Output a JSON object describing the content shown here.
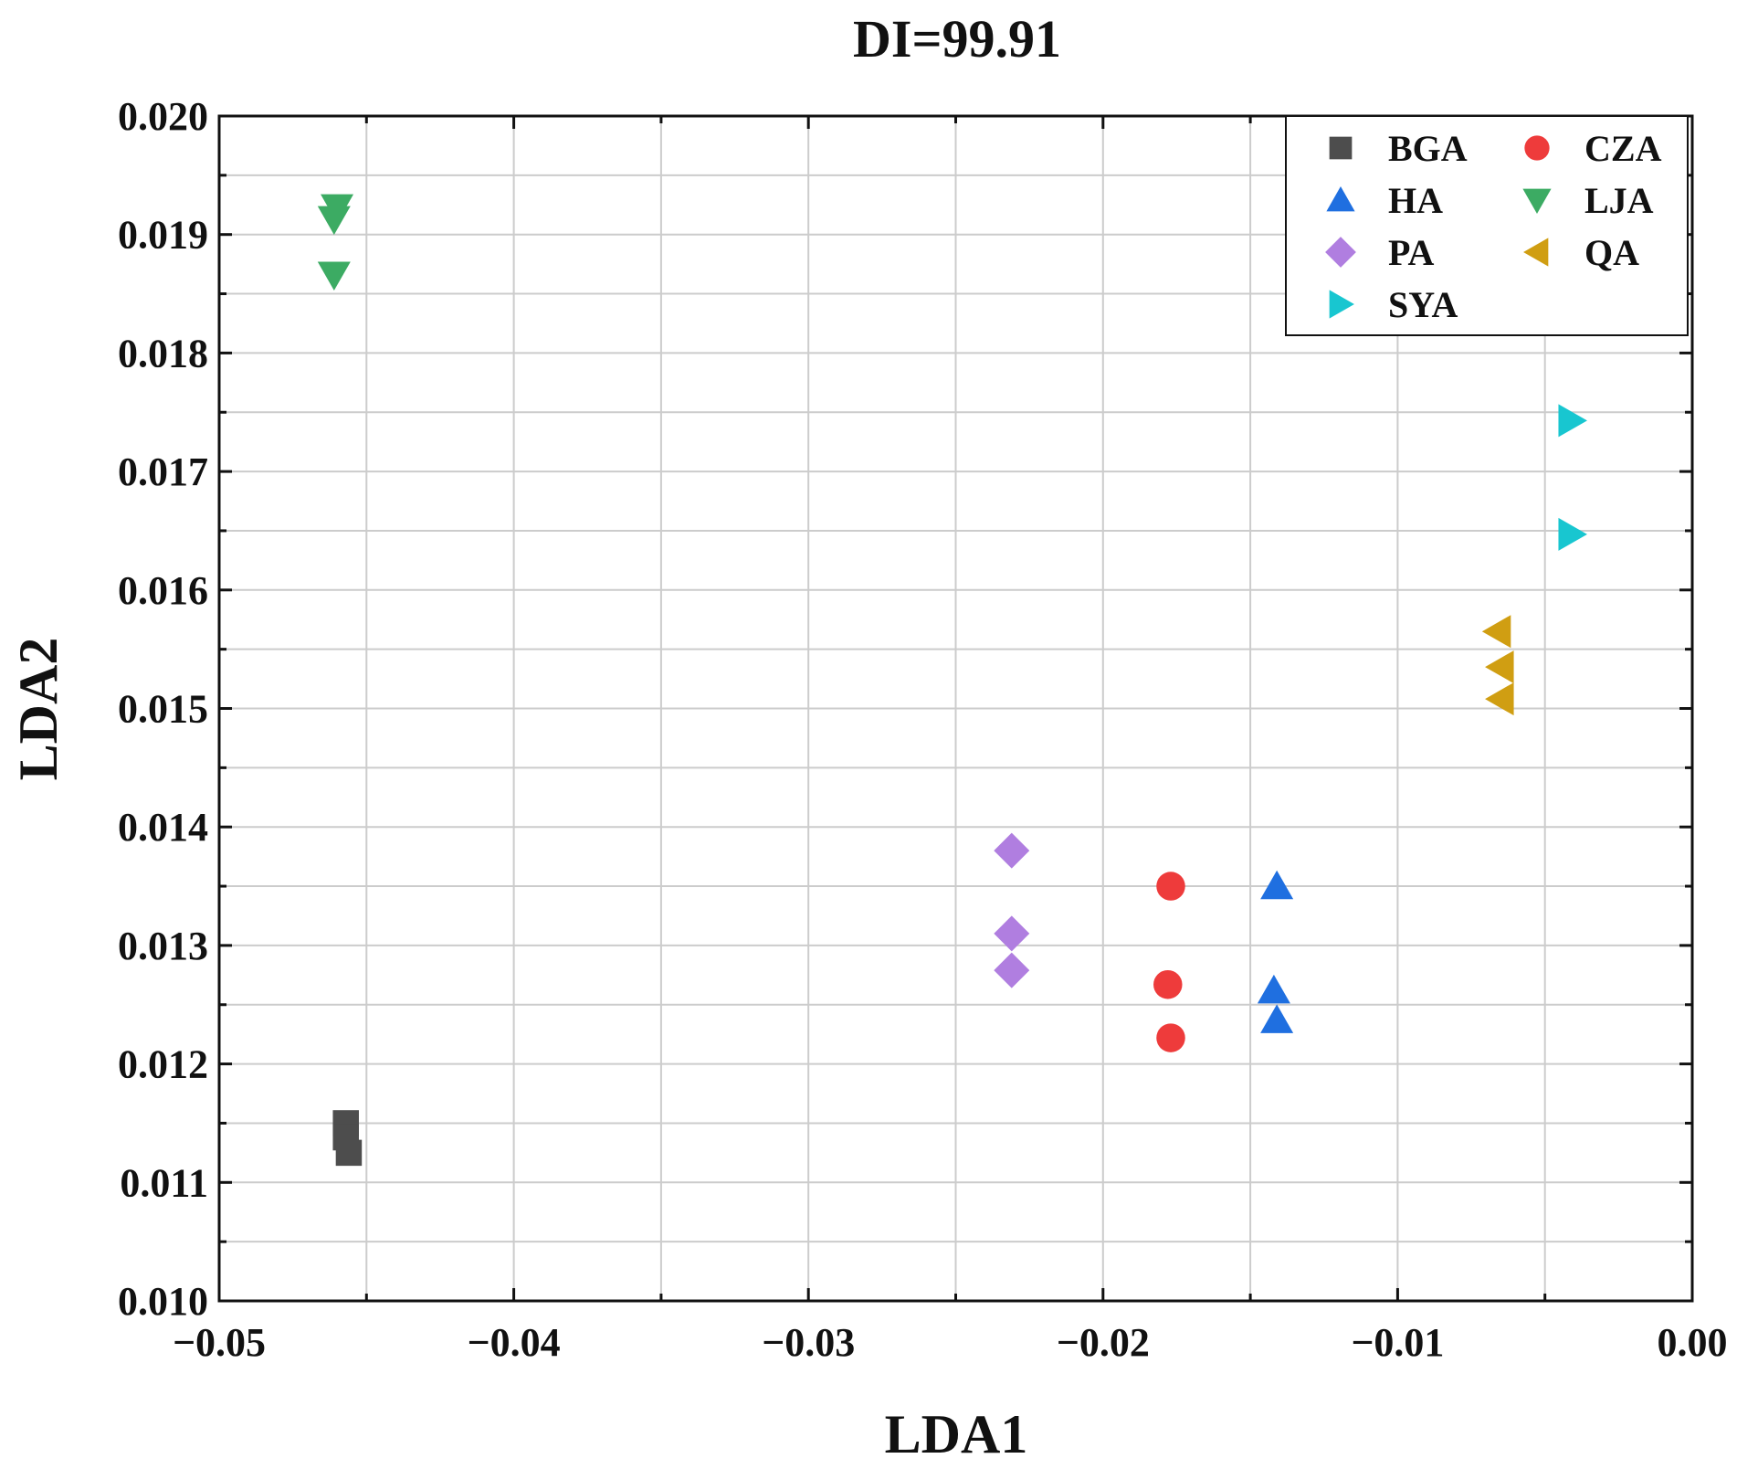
{
  "chart_data": {
    "type": "scatter",
    "title": "DI=99.91",
    "xlabel": "LDA1",
    "ylabel": "LDA2",
    "xlim": [
      -0.05,
      0.0
    ],
    "ylim": [
      0.01,
      0.02
    ],
    "x_ticks": [
      -0.05,
      -0.04,
      -0.03,
      -0.02,
      -0.01,
      0.0
    ],
    "x_tick_labels": [
      "−0.05",
      "−0.04",
      "−0.03",
      "−0.02",
      "−0.01",
      "0.00"
    ],
    "y_ticks": [
      0.01,
      0.011,
      0.012,
      0.013,
      0.014,
      0.015,
      0.016,
      0.017,
      0.018,
      0.019,
      0.02
    ],
    "y_tick_labels": [
      "0.010",
      "0.011",
      "0.012",
      "0.013",
      "0.014",
      "0.015",
      "0.016",
      "0.017",
      "0.018",
      "0.019",
      "0.020"
    ],
    "grid": true,
    "legend_position": "top-right",
    "series": [
      {
        "name": "BGA",
        "marker": "square",
        "color": "#4d4d4d",
        "points": [
          [
            -0.0457,
            0.0115
          ],
          [
            -0.0457,
            0.01138
          ],
          [
            -0.0456,
            0.01125
          ]
        ]
      },
      {
        "name": "CZA",
        "marker": "circle",
        "color": "#ee3b3b",
        "points": [
          [
            -0.0177,
            0.0135
          ],
          [
            -0.0178,
            0.01267
          ],
          [
            -0.0177,
            0.01222
          ]
        ]
      },
      {
        "name": "HA",
        "marker": "triangle-up",
        "color": "#1f6fe0",
        "points": [
          [
            -0.0141,
            0.0135
          ],
          [
            -0.0142,
            0.01262
          ],
          [
            -0.0141,
            0.01237
          ]
        ]
      },
      {
        "name": "LJA",
        "marker": "triangle-down",
        "color": "#3cab63",
        "points": [
          [
            -0.046,
            0.01923
          ],
          [
            -0.0461,
            0.01913
          ],
          [
            -0.0461,
            0.01866
          ]
        ]
      },
      {
        "name": "PA",
        "marker": "diamond",
        "color": "#b07ee0",
        "points": [
          [
            -0.0231,
            0.0138
          ],
          [
            -0.0231,
            0.0131
          ],
          [
            -0.0231,
            0.01279
          ]
        ]
      },
      {
        "name": "QA",
        "marker": "triangle-left",
        "color": "#d09e12",
        "points": [
          [
            -0.0066,
            0.01565
          ],
          [
            -0.0065,
            0.01535
          ],
          [
            -0.0065,
            0.01508
          ]
        ]
      },
      {
        "name": "SYA",
        "marker": "triangle-right",
        "color": "#18c6d0",
        "points": [
          [
            -0.0041,
            0.01743
          ],
          [
            -0.0041,
            0.01647
          ]
        ]
      }
    ],
    "legend_order": [
      "BGA",
      "CZA",
      "HA",
      "LJA",
      "PA",
      "QA",
      "SYA"
    ]
  }
}
